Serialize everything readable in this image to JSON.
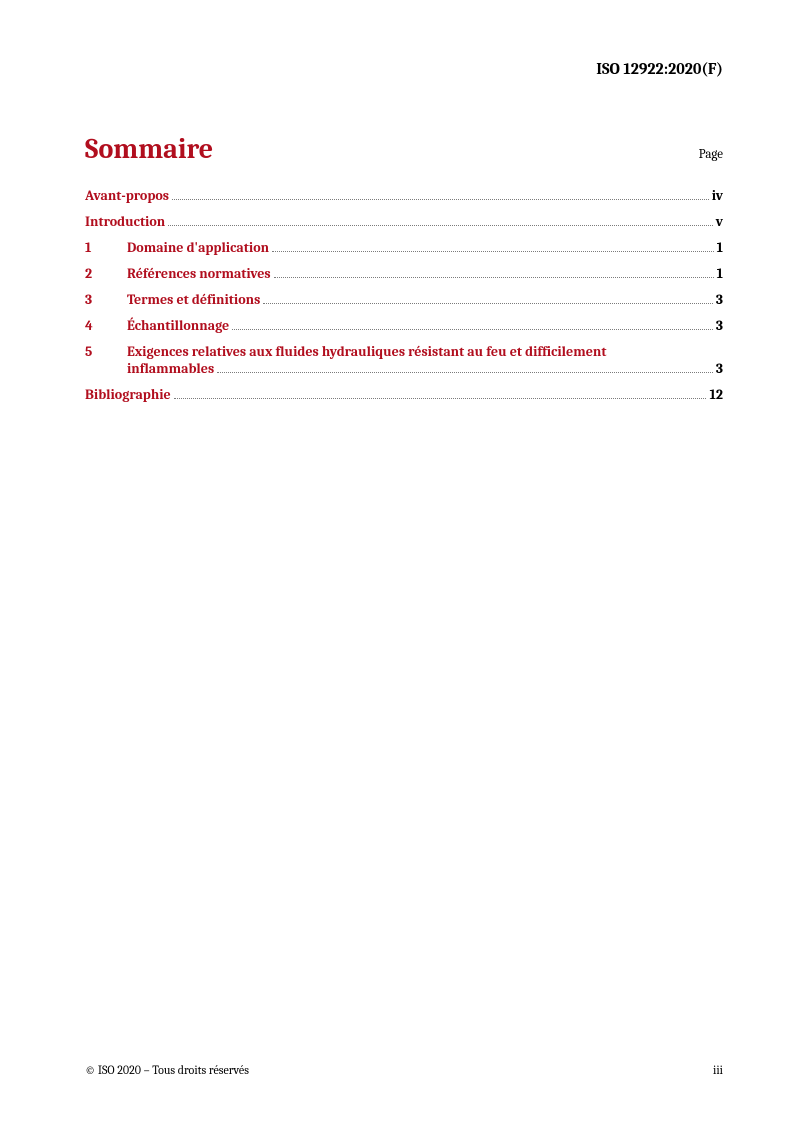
{
  "header": {
    "standard": "ISO 12922:2020(F)"
  },
  "title": "Sommaire",
  "page_label": "Page",
  "toc": {
    "front": [
      {
        "label": "Avant-propos",
        "page": "iv"
      },
      {
        "label": "Introduction",
        "page": "v"
      }
    ],
    "sections": [
      {
        "num": "1",
        "label": "Domaine d'application",
        "page": "1"
      },
      {
        "num": "2",
        "label": "Références normatives",
        "page": "1"
      },
      {
        "num": "3",
        "label": "Termes et définitions",
        "page": "3"
      },
      {
        "num": "4",
        "label": "Échantillonnage",
        "page": "3"
      },
      {
        "num": "5",
        "label_line1": "Exigences relatives aux fluides hydrauliques résistant au feu et difficilement",
        "label_line2": "inflammables",
        "page": "3"
      }
    ],
    "back": [
      {
        "label": "Bibliographie",
        "page": "12"
      }
    ]
  },
  "footer": {
    "left": "© ISO 2020 – Tous droits réservés",
    "right": "iii"
  },
  "colors": {
    "accent": "#b10e1e",
    "text": "#000000",
    "leaders": "#7b7b7b"
  }
}
